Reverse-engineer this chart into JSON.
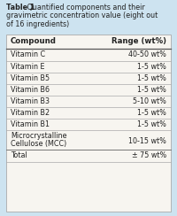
{
  "title_bold": "Table 1",
  "title_rest": " Quantified components and their gravimetric concentration value (eight out of 16 ingredients)",
  "title_lines": [
    [
      "bold",
      "Table 1"
    ],
    [
      "normal",
      " Quantified components and their"
    ],
    [
      "normal",
      "gravimetric concentration value (eight out"
    ],
    [
      "normal",
      "of 16 ingredients)"
    ]
  ],
  "header": [
    "Compound",
    "Range (wt%)"
  ],
  "rows": [
    [
      "Vitamin C",
      "40-50 wt%"
    ],
    [
      "Vitamin E",
      "1-5 wt%"
    ],
    [
      "Vitamin B5",
      "1-5 wt%"
    ],
    [
      "Vitamin B6",
      "1-5 wt%"
    ],
    [
      "Vitamin B3",
      "5-10 wt%"
    ],
    [
      "Vitamin B2",
      "1-5 wt%"
    ],
    [
      "Vitamin B1",
      "1-5 wt%"
    ],
    [
      "Microcrystalline\nCellulose (MCC)",
      "10-15 wt%"
    ],
    [
      "Total",
      "± 75 wt%"
    ]
  ],
  "bg_color": "#cde3f0",
  "table_bg": "#f7f5f0",
  "line_color": "#999999",
  "text_color": "#222222",
  "title_fontsize": 5.8,
  "header_fontsize": 6.2,
  "cell_fontsize": 5.8,
  "fig_width": 2.0,
  "fig_height": 2.44,
  "dpi": 100
}
